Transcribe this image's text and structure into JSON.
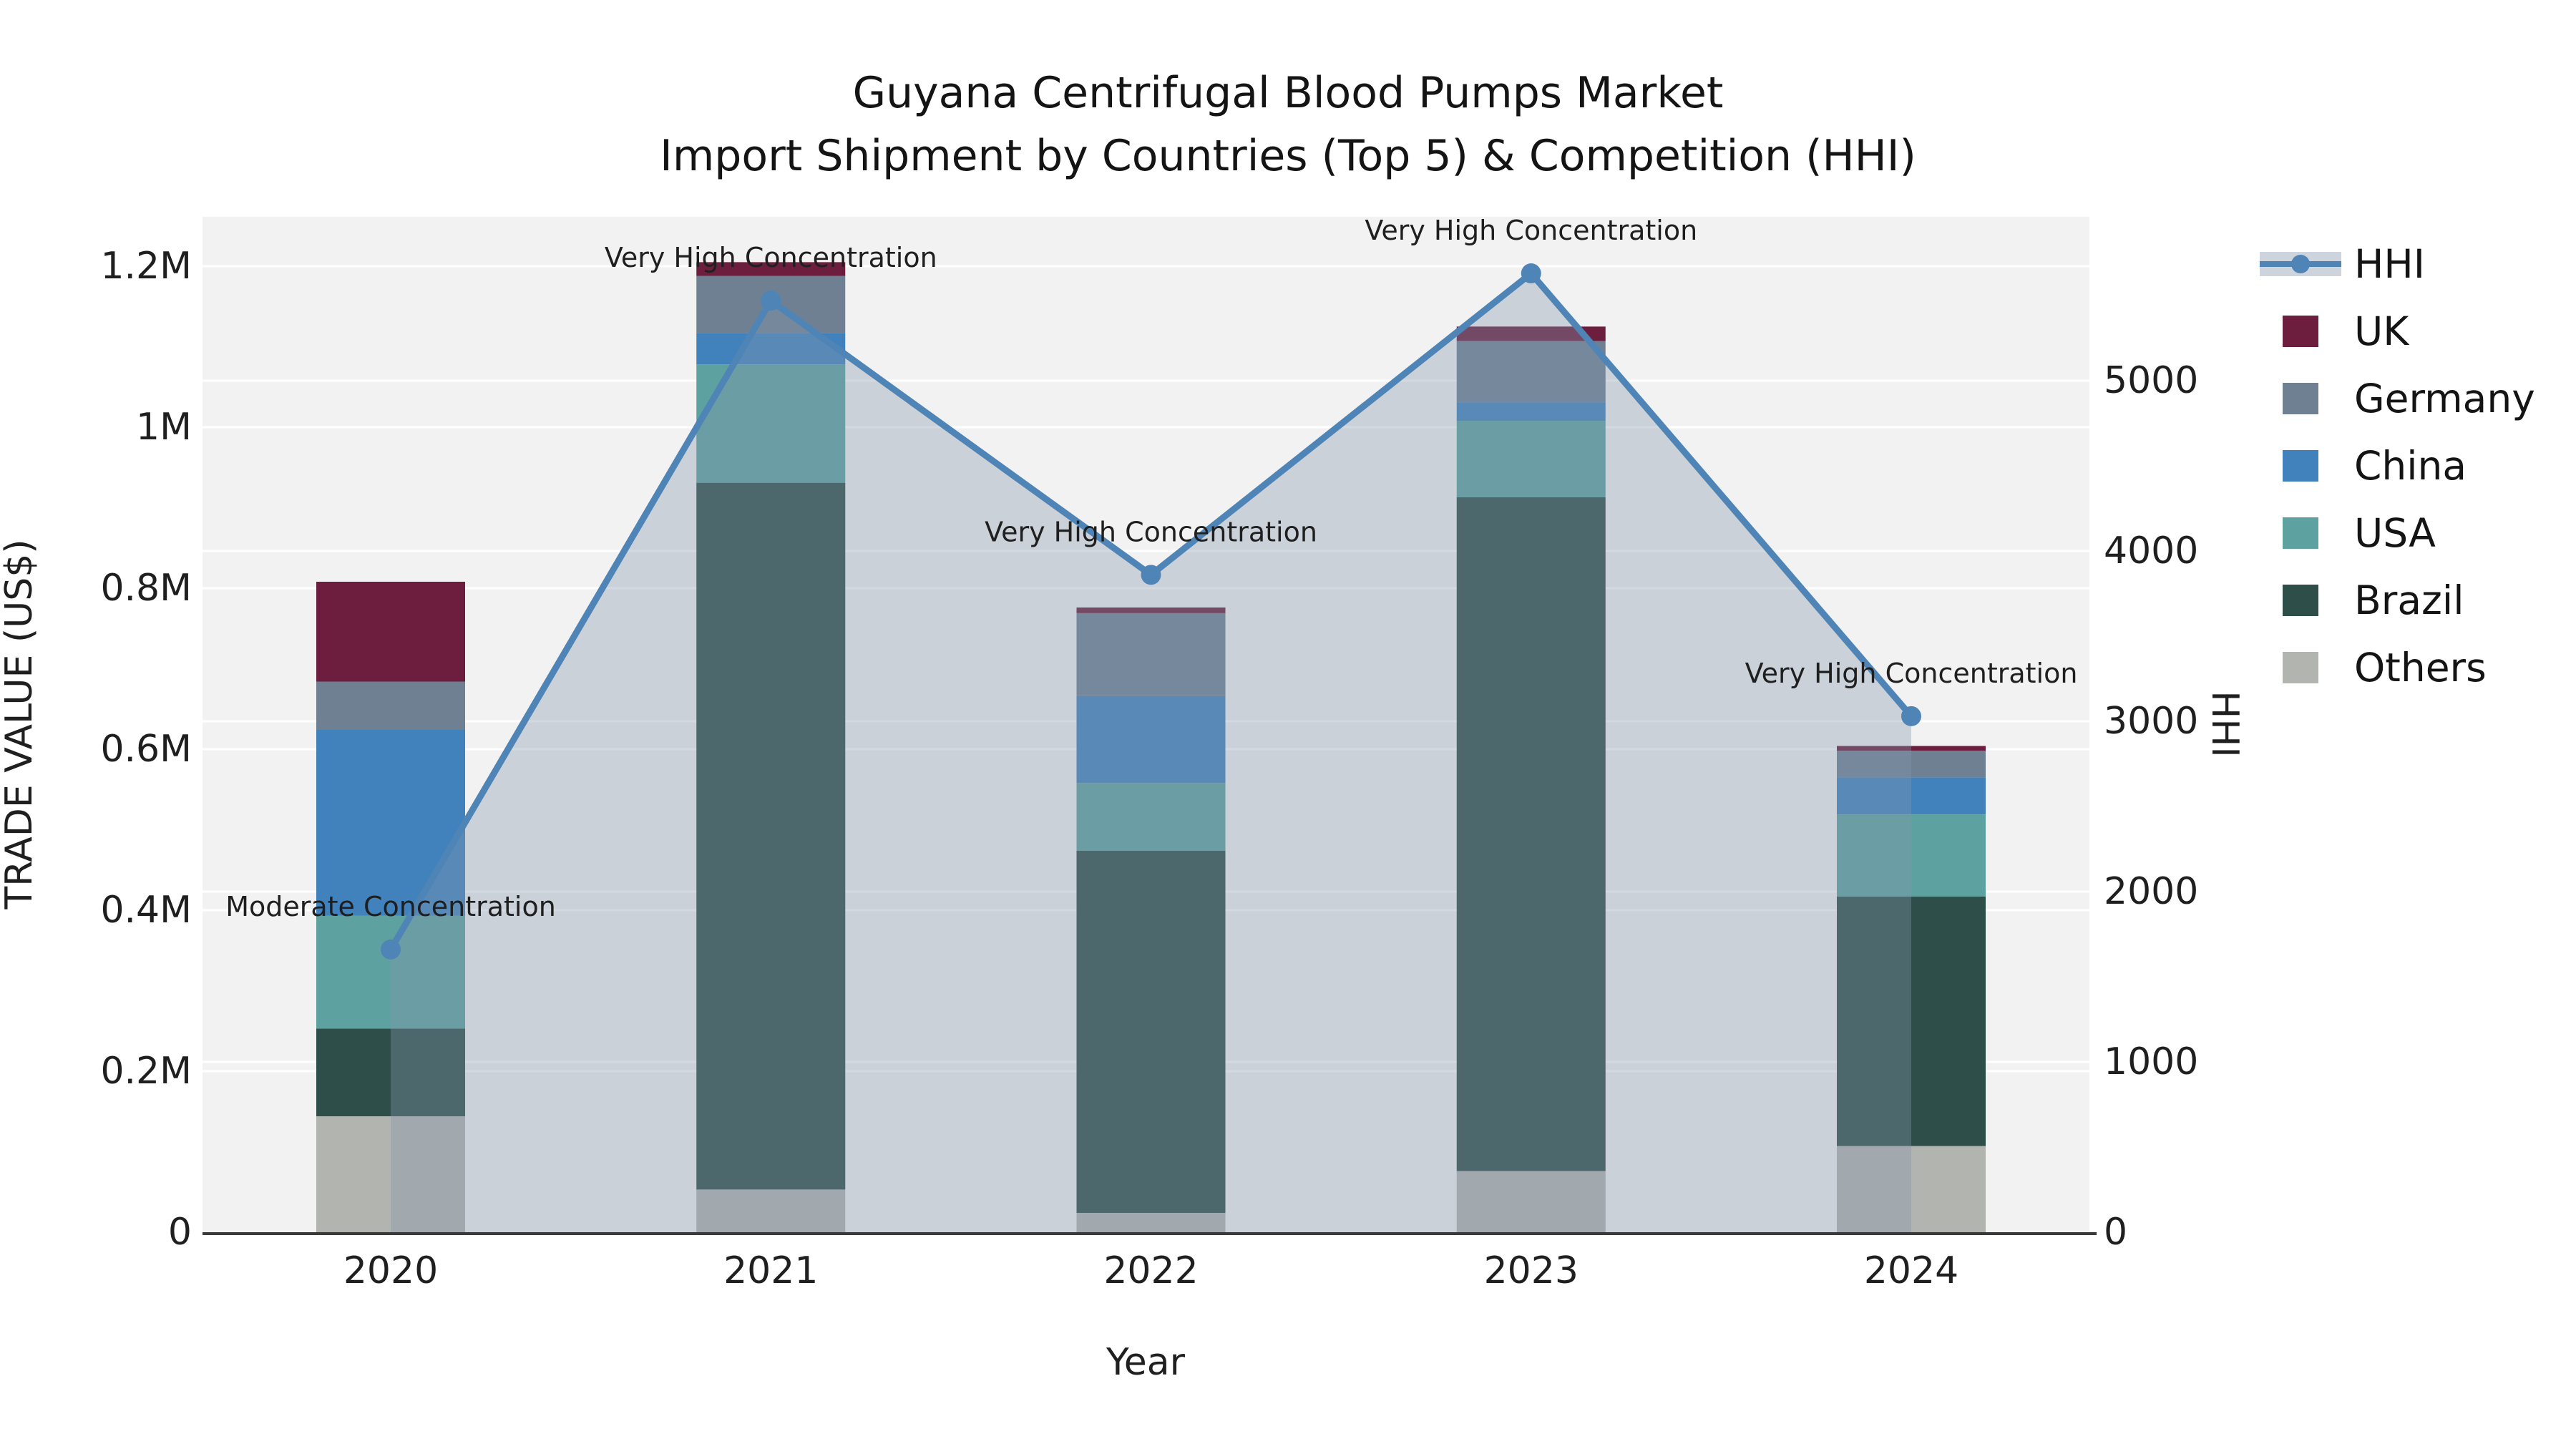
{
  "title": {
    "line1": "Guyana Centrifugal Blood Pumps Market",
    "line2": "Import Shipment by Countries (Top 5) & Competition (HHI)"
  },
  "axes": {
    "x": {
      "title": "Year",
      "ticks": [
        "2020",
        "2021",
        "2022",
        "2023",
        "2024"
      ]
    },
    "y_left": {
      "title": "TRADE VALUE (US$)",
      "ticks": [
        {
          "label": "0",
          "value": 0
        },
        {
          "label": "0.2M",
          "value": 200000
        },
        {
          "label": "0.4M",
          "value": 400000
        },
        {
          "label": "0.6M",
          "value": 600000
        },
        {
          "label": "0.8M",
          "value": 800000
        },
        {
          "label": "1M",
          "value": 1000000
        },
        {
          "label": "1.2M",
          "value": 1200000
        }
      ]
    },
    "y_right": {
      "title": "HHI",
      "ticks": [
        {
          "label": "0",
          "value": 0
        },
        {
          "label": "1000",
          "value": 1000
        },
        {
          "label": "2000",
          "value": 2000
        },
        {
          "label": "3000",
          "value": 3000
        },
        {
          "label": "4000",
          "value": 4000
        },
        {
          "label": "5000",
          "value": 5000
        }
      ]
    }
  },
  "legend": [
    {
      "label": "HHI",
      "type": "line",
      "color": "#4f84b6"
    },
    {
      "label": "UK",
      "type": "patch",
      "color": "#6d1e3e"
    },
    {
      "label": "Germany",
      "type": "patch",
      "color": "#6f8093"
    },
    {
      "label": "China",
      "type": "patch",
      "color": "#4282bc"
    },
    {
      "label": "USA",
      "type": "patch",
      "color": "#5da2a0"
    },
    {
      "label": "Brazil",
      "type": "patch",
      "color": "#2e4f49"
    },
    {
      "label": "Others",
      "type": "patch",
      "color": "#b2b4b0"
    }
  ],
  "colors": {
    "plot_background": "#f2f2f2",
    "gridline": "#ffffff",
    "axis_line": "#3a3a3a",
    "text": "#1f1f1f",
    "hhi_line": "#4f84b6",
    "hhi_fill": "rgba(131,150,173,0.36)"
  },
  "chart_data": {
    "type": "bar",
    "subtype": "stacked-bars-with-line-overlay",
    "title": "Guyana Centrifugal Blood Pumps Market — Import Shipment by Countries (Top 5) & Competition (HHI)",
    "categories": [
      "2020",
      "2021",
      "2022",
      "2023",
      "2024"
    ],
    "xlabel": "Year",
    "ylabel_left": "TRADE VALUE (US$)",
    "ylabel_right": "HHI",
    "ylim_left": [
      0,
      1240000
    ],
    "ylim_right": [
      0,
      6000
    ],
    "grid": true,
    "legend_position": "outside-right",
    "series": [
      {
        "name": "Others",
        "values": [
          144000,
          53000,
          24000,
          76000,
          107000
        ],
        "color": "#b2b4b0"
      },
      {
        "name": "Brazil",
        "values": [
          109000,
          878000,
          450000,
          837000,
          310000
        ],
        "color": "#2e4f49"
      },
      {
        "name": "USA",
        "values": [
          140000,
          147000,
          84000,
          95000,
          102000
        ],
        "color": "#5da2a0"
      },
      {
        "name": "China",
        "values": [
          231000,
          39000,
          108000,
          23000,
          46000
        ],
        "color": "#4282bc"
      },
      {
        "name": "Germany",
        "values": [
          60000,
          71000,
          103000,
          76000,
          33000
        ],
        "color": "#6f8093"
      },
      {
        "name": "UK",
        "values": [
          124000,
          17000,
          7000,
          18000,
          6000
        ],
        "color": "#6d1e3e"
      }
    ],
    "bar_totals": [
      808000,
      1205000,
      776000,
      1125000,
      604000
    ],
    "hhi_line": {
      "name": "HHI",
      "values": [
        1660,
        5470,
        3860,
        5630,
        3030
      ],
      "style": "line-with-markers-and-area-fill"
    },
    "annotations": [
      {
        "category": "2020",
        "text": "Moderate Concentration"
      },
      {
        "category": "2021",
        "text": "Very High Concentration"
      },
      {
        "category": "2022",
        "text": "Very High Concentration"
      },
      {
        "category": "2023",
        "text": "Very High Concentration"
      },
      {
        "category": "2024",
        "text": "Very High Concentration"
      }
    ]
  }
}
